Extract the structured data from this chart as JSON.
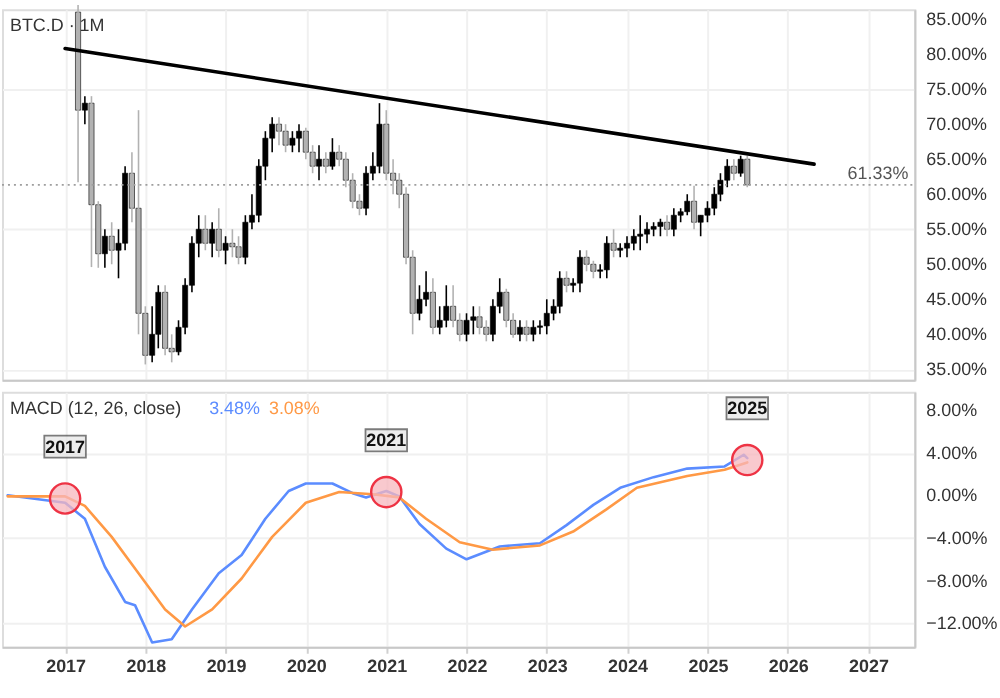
{
  "chart_data": [
    {
      "type": "candlestick",
      "title": "BTC.D · 1M",
      "x": [
        "2017-03",
        "2017-04",
        "2017-05",
        "2017-06",
        "2017-07",
        "2017-08",
        "2017-09",
        "2017-10",
        "2017-11",
        "2017-12",
        "2018-01",
        "2018-02",
        "2018-03",
        "2018-04",
        "2018-05",
        "2018-06",
        "2018-07",
        "2018-08",
        "2018-09",
        "2018-10",
        "2018-11",
        "2018-12",
        "2019-01",
        "2019-02",
        "2019-03",
        "2019-04",
        "2019-05",
        "2019-06",
        "2019-07",
        "2019-08",
        "2019-09",
        "2019-10",
        "2019-11",
        "2019-12",
        "2020-01",
        "2020-02",
        "2020-03",
        "2020-04",
        "2020-05",
        "2020-06",
        "2020-07",
        "2020-08",
        "2020-09",
        "2020-10",
        "2020-11",
        "2020-12",
        "2021-01",
        "2021-02",
        "2021-03",
        "2021-04",
        "2021-05",
        "2021-06",
        "2021-07",
        "2021-08",
        "2021-09",
        "2021-10",
        "2021-11",
        "2021-12",
        "2022-01",
        "2022-02",
        "2022-03",
        "2022-04",
        "2022-05",
        "2022-06",
        "2022-07",
        "2022-08",
        "2022-09",
        "2022-10",
        "2022-11",
        "2022-12",
        "2023-01",
        "2023-02",
        "2023-03",
        "2023-04",
        "2023-05",
        "2023-06",
        "2023-07",
        "2023-08",
        "2023-09",
        "2023-10",
        "2023-11",
        "2023-12",
        "2024-01",
        "2024-02",
        "2024-03",
        "2024-04",
        "2024-05",
        "2024-06",
        "2024-07",
        "2024-08",
        "2024-09",
        "2024-10",
        "2024-11",
        "2024-12",
        "2025-01",
        "2025-02",
        "2025-03",
        "2025-04",
        "2025-05",
        "2025-06",
        "2025-07"
      ],
      "ohlc": [
        [
          86,
          87,
          61.7,
          72
        ],
        [
          72,
          74,
          70,
          73
        ],
        [
          73,
          74,
          49.6,
          58.5
        ],
        [
          58.5,
          59,
          49.5,
          51.5
        ],
        [
          51.5,
          55,
          49.5,
          54
        ],
        [
          54,
          56,
          50,
          52
        ],
        [
          52,
          55,
          48,
          53
        ],
        [
          53,
          64,
          52,
          63
        ],
        [
          63,
          66,
          56,
          58
        ],
        [
          58,
          72,
          40,
          43
        ],
        [
          43,
          44,
          35.7,
          37
        ],
        [
          37,
          44,
          36,
          40
        ],
        [
          40,
          47,
          38,
          46
        ],
        [
          46,
          47,
          37,
          38
        ],
        [
          38,
          40,
          36,
          37.5
        ],
        [
          37.5,
          42,
          37,
          41
        ],
        [
          41,
          48,
          40,
          47
        ],
        [
          47,
          54,
          46,
          53
        ],
        [
          53,
          57,
          51,
          55
        ],
        [
          55,
          57,
          52,
          53
        ],
        [
          53,
          56,
          51,
          55
        ],
        [
          55,
          58,
          51,
          52
        ],
        [
          52,
          54,
          50,
          53
        ],
        [
          53,
          55,
          51,
          52.5
        ],
        [
          52.5,
          54,
          50,
          51
        ],
        [
          51,
          57,
          50,
          56
        ],
        [
          56,
          60,
          55,
          57
        ],
        [
          57,
          65,
          56,
          64
        ],
        [
          64,
          69,
          62,
          68
        ],
        [
          68,
          71,
          66,
          70
        ],
        [
          70,
          71,
          67,
          69
        ],
        [
          69,
          70,
          66,
          67
        ],
        [
          67,
          69,
          66,
          68
        ],
        [
          68,
          70,
          66,
          69
        ],
        [
          69,
          69.5,
          65,
          66
        ],
        [
          66,
          67,
          63,
          64
        ],
        [
          64,
          67,
          62,
          65
        ],
        [
          65,
          66,
          63,
          64
        ],
        [
          64,
          68,
          63.5,
          66
        ],
        [
          66,
          67,
          64,
          65
        ],
        [
          65,
          66,
          61,
          62
        ],
        [
          62,
          63,
          58,
          59
        ],
        [
          59,
          60,
          57,
          58
        ],
        [
          58,
          64,
          57,
          63
        ],
        [
          63,
          66,
          62,
          64
        ],
        [
          64,
          73,
          63,
          70
        ],
        [
          70,
          72,
          62,
          63
        ],
        [
          63,
          65,
          60,
          62
        ],
        [
          62,
          63,
          58,
          60
        ],
        [
          60,
          61,
          50,
          51
        ],
        [
          51,
          52,
          40,
          43
        ],
        [
          43,
          47,
          42,
          45
        ],
        [
          45,
          49,
          44,
          46
        ],
        [
          46,
          48,
          40,
          41
        ],
        [
          41,
          44,
          40,
          42
        ],
        [
          42,
          47,
          41,
          44
        ],
        [
          44,
          47,
          41,
          42
        ],
        [
          42,
          43,
          39,
          40
        ],
        [
          40,
          43,
          39,
          42
        ],
        [
          42,
          44,
          40,
          42.5
        ],
        [
          42.5,
          44,
          40,
          41
        ],
        [
          41,
          42,
          39,
          40
        ],
        [
          40,
          45,
          39,
          44
        ],
        [
          44,
          48,
          43,
          46
        ],
        [
          46,
          46.5,
          41,
          42
        ],
        [
          42,
          43,
          39.5,
          40
        ],
        [
          40,
          42,
          39,
          41
        ],
        [
          41,
          42,
          39,
          40
        ],
        [
          40,
          42,
          39,
          41
        ],
        [
          41,
          42,
          40,
          41.2
        ],
        [
          41.2,
          45,
          40,
          43
        ],
        [
          43,
          45,
          42,
          44
        ],
        [
          44,
          49,
          43,
          48
        ],
        [
          48,
          49,
          46,
          47
        ],
        [
          47,
          48,
          46,
          47.3
        ],
        [
          47.3,
          52,
          46,
          51
        ],
        [
          51,
          52,
          49,
          50
        ],
        [
          50,
          50.5,
          48,
          49
        ],
        [
          49,
          50,
          48,
          49.2
        ],
        [
          49.2,
          54,
          48,
          53
        ],
        [
          53,
          55,
          51,
          52
        ],
        [
          52,
          53,
          51,
          52.3
        ],
        [
          52.3,
          54,
          51,
          53
        ],
        [
          53,
          55,
          52,
          54
        ],
        [
          54,
          57,
          52,
          54.3
        ],
        [
          54.3,
          56,
          53,
          55
        ],
        [
          55,
          56,
          54,
          55.4
        ],
        [
          55.4,
          56.5,
          54,
          56
        ],
        [
          56,
          57,
          54,
          55
        ],
        [
          55,
          58,
          54,
          57
        ],
        [
          57,
          58,
          56,
          57.5
        ],
        [
          57.5,
          60,
          57,
          59
        ],
        [
          59,
          61.2,
          55,
          56
        ],
        [
          56,
          57,
          54,
          57
        ],
        [
          57,
          59,
          56,
          58
        ],
        [
          58,
          61,
          57,
          60
        ],
        [
          60,
          63,
          59,
          62
        ],
        [
          62,
          65,
          61,
          64
        ],
        [
          64,
          65,
          62,
          63
        ],
        [
          63,
          65.5,
          62.5,
          65
        ],
        [
          65,
          65.5,
          61,
          61.33
        ]
      ],
      "colors": [
        "#b2b2b2",
        "#000000",
        "#b2b2b2",
        "#b2b2b2",
        "#000000",
        "#b2b2b2",
        "#000000",
        "#000000",
        "#b2b2b2",
        "#b2b2b2",
        "#b2b2b2",
        "#000000",
        "#000000",
        "#b2b2b2",
        "#b2b2b2",
        "#000000",
        "#000000",
        "#000000",
        "#000000",
        "#b2b2b2",
        "#000000",
        "#b2b2b2",
        "#000000",
        "#b2b2b2",
        "#b2b2b2",
        "#000000",
        "#000000",
        "#000000",
        "#000000",
        "#000000",
        "#b2b2b2",
        "#b2b2b2",
        "#000000",
        "#000000",
        "#b2b2b2",
        "#b2b2b2",
        "#000000",
        "#b2b2b2",
        "#000000",
        "#b2b2b2",
        "#b2b2b2",
        "#b2b2b2",
        "#b2b2b2",
        "#000000",
        "#000000",
        "#000000",
        "#b2b2b2",
        "#b2b2b2",
        "#b2b2b2",
        "#b2b2b2",
        "#b2b2b2",
        "#000000",
        "#000000",
        "#b2b2b2",
        "#000000",
        "#000000",
        "#b2b2b2",
        "#b2b2b2",
        "#000000",
        "#000000",
        "#b2b2b2",
        "#b2b2b2",
        "#000000",
        "#000000",
        "#b2b2b2",
        "#b2b2b2",
        "#000000",
        "#b2b2b2",
        "#000000",
        "#000000",
        "#000000",
        "#000000",
        "#000000",
        "#b2b2b2",
        "#000000",
        "#000000",
        "#b2b2b2",
        "#b2b2b2",
        "#000000",
        "#000000",
        "#b2b2b2",
        "#000000",
        "#000000",
        "#000000",
        "#000000",
        "#000000",
        "#000000",
        "#000000",
        "#b2b2b2",
        "#000000",
        "#000000",
        "#000000",
        "#b2b2b2",
        "#000000",
        "#000000",
        "#000000",
        "#000000",
        "#000000",
        "#b2b2b2",
        "#000000",
        "#b2b2b2"
      ],
      "series": [
        {
          "type": "line",
          "x": [
            "2017-01",
            "2026-05"
          ],
          "values": [
            80.8,
            64.3
          ],
          "color": "#000000"
        }
      ],
      "xlim": [
        "2016-03-20",
        "2027-07-31"
      ],
      "xticks": [
        {
          "value": "2017",
          "label": null
        },
        {
          "value": "2018",
          "label": null
        },
        {
          "value": "2019",
          "label": null
        },
        {
          "value": "2020",
          "label": null
        },
        {
          "value": "2021",
          "label": null
        },
        {
          "value": "2022",
          "label": null
        },
        {
          "value": "2023",
          "label": null
        },
        {
          "value": "2024",
          "label": null
        },
        {
          "value": "2025",
          "label": null
        },
        {
          "value": "2026",
          "label": null
        },
        {
          "value": "2027",
          "label": null
        }
      ],
      "ylim": [
        33.5,
        86.4
      ],
      "yticks": [
        {
          "value": 35,
          "label": "35.00%"
        },
        {
          "value": 40,
          "label": "40.00%"
        },
        {
          "value": 45,
          "label": "45.00%"
        },
        {
          "value": 50,
          "label": "50.00%"
        },
        {
          "value": 55,
          "label": "55.00%"
        },
        {
          "value": 60,
          "label": "60.00%"
        },
        {
          "value": 65,
          "label": "65.00%"
        },
        {
          "value": 70,
          "label": "70.00%"
        },
        {
          "value": 75,
          "label": "75.00%"
        },
        {
          "value": 80,
          "label": "80.00%"
        },
        {
          "value": 85,
          "label": "85.00%"
        }
      ],
      "ref_lines": [
        {
          "axis": "y",
          "value": 61.33,
          "label": "61.33%",
          "color": "#9e9e9e",
          "line_style": "dotted"
        }
      ],
      "tick_labels": "y",
      "grid": true
    },
    {
      "type": "line",
      "title": "MACD (12, 26, close)",
      "legend": "top left",
      "series": [
        {
          "name": "3.48%",
          "color": "#5b8cff",
          "x": [
            "2016-04-15",
            "2017-01",
            "2017-04",
            "2017-07",
            "2017-10",
            "2017-11-15",
            "2018-02",
            "2018-05",
            "2018-08",
            "2018-12",
            "2019-03-15",
            "2019-07",
            "2019-10-15",
            "2020-01",
            "2020-05",
            "2020-08",
            "2020-10",
            "2021-01",
            "2021-03",
            "2021-06",
            "2021-10",
            "2022-01",
            "2022-06",
            "2022-12",
            "2023-04",
            "2023-08",
            "2023-12",
            "2024-05",
            "2024-10",
            "2025-03-20",
            "2025-06-15",
            "2025-07"
          ],
          "values": [
            0,
            -0.7,
            -2.2,
            -6.7,
            -10,
            -10.3,
            -13.8,
            -13.5,
            -10.7,
            -7.3,
            -5.6,
            -2.2,
            0.4,
            1.1,
            1.1,
            0.2,
            -0.2,
            0.4,
            -0.1,
            -2.7,
            -5,
            -6,
            -4.8,
            -4.5,
            -2.8,
            -0.9,
            0.7,
            1.7,
            2.5,
            2.7,
            3.8,
            3.48
          ]
        },
        {
          "name": "3.08%",
          "color": "#ff9945",
          "x": [
            "2016-04-15",
            "2017-01",
            "2017-04",
            "2017-08",
            "2017-12",
            "2018-04",
            "2018-07",
            "2018-11",
            "2019-03-15",
            "2019-08",
            "2020-01",
            "2020-06",
            "2020-11",
            "2021-03",
            "2021-07",
            "2021-12",
            "2022-05",
            "2022-12",
            "2023-05",
            "2023-10",
            "2024-02-15",
            "2024-10",
            "2025-03-20",
            "2025-07"
          ],
          "values": [
            -0.1,
            -0.1,
            -1,
            -3.9,
            -7.3,
            -10.7,
            -12.3,
            -10.7,
            -7.8,
            -3.9,
            -0.7,
            0.3,
            0.1,
            -0.2,
            -2.2,
            -4.4,
            -5.1,
            -4.7,
            -3.4,
            -1.3,
            0.7,
            1.8,
            2.4,
            3.08
          ]
        }
      ],
      "annotations": [
        {
          "text": "2017",
          "x": "2017-01",
          "y": -0.3
        },
        {
          "text": "2021",
          "x": "2021-01",
          "y": 0.3
        },
        {
          "text": "2025",
          "x": "2025-07",
          "y": 3.3
        }
      ],
      "xlim": [
        "2016-03-20",
        "2027-07-31"
      ],
      "xticks": [
        {
          "value": "2017",
          "label": "2017"
        },
        {
          "value": "2018",
          "label": "2018"
        },
        {
          "value": "2019",
          "label": "2019"
        },
        {
          "value": "2020",
          "label": "2020"
        },
        {
          "value": "2021",
          "label": "2021"
        },
        {
          "value": "2022",
          "label": "2022"
        },
        {
          "value": "2023",
          "label": "2023"
        },
        {
          "value": "2024",
          "label": "2024"
        },
        {
          "value": "2025",
          "label": "2025"
        },
        {
          "value": "2026",
          "label": "2026"
        },
        {
          "value": "2027",
          "label": "2027"
        }
      ],
      "ylim": [
        -14.2,
        9.7
      ],
      "yticks": [
        {
          "value": 8,
          "label": "8.00%"
        },
        {
          "value": 4,
          "label": "4.00%"
        },
        {
          "value": 0,
          "label": "0.00%"
        },
        {
          "value": -4,
          "label": "−4.00%"
        },
        {
          "value": -8,
          "label": "−8.00%"
        },
        {
          "value": -12,
          "label": "−12.00%"
        }
      ],
      "grid": true
    }
  ]
}
